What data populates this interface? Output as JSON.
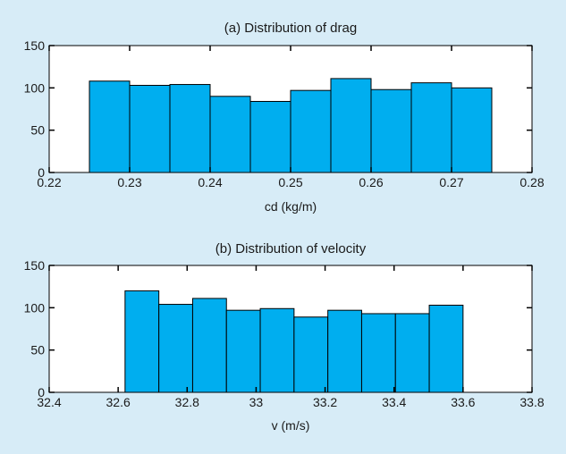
{
  "chart_data": [
    {
      "type": "bar",
      "title": "(a) Distribution of drag",
      "xlabel": "cd (kg/m)",
      "ylabel": "",
      "xlim": [
        0.22,
        0.28
      ],
      "ylim": [
        0,
        150
      ],
      "xticks": [
        "0.22",
        "0.23",
        "0.24",
        "0.25",
        "0.26",
        "0.27",
        "0.28"
      ],
      "yticks": [
        "0",
        "50",
        "100",
        "150"
      ],
      "bin_edges": [
        0.225,
        0.23,
        0.235,
        0.24,
        0.245,
        0.25,
        0.255,
        0.26,
        0.265,
        0.27,
        0.275
      ],
      "values": [
        108,
        103,
        104,
        90,
        84,
        97,
        111,
        98,
        106,
        100
      ],
      "grid": false,
      "bar_color": "#00aeef"
    },
    {
      "type": "bar",
      "title": "(b) Distribution of velocity",
      "xlabel": "v (m/s)",
      "ylabel": "",
      "xlim": [
        32.4,
        33.8
      ],
      "ylim": [
        0,
        150
      ],
      "xticks": [
        "32.4",
        "32.6",
        "32.8",
        "33",
        "33.2",
        "33.4",
        "33.6",
        "33.8"
      ],
      "yticks": [
        "0",
        "50",
        "100",
        "150"
      ],
      "bin_edges": [
        32.62,
        32.718,
        32.816,
        32.914,
        33.012,
        33.11,
        33.208,
        33.306,
        33.404,
        33.502,
        33.6
      ],
      "values": [
        120,
        104,
        111,
        97,
        99,
        89,
        97,
        93,
        93,
        103
      ],
      "grid": false,
      "bar_color": "#00aeef"
    }
  ]
}
